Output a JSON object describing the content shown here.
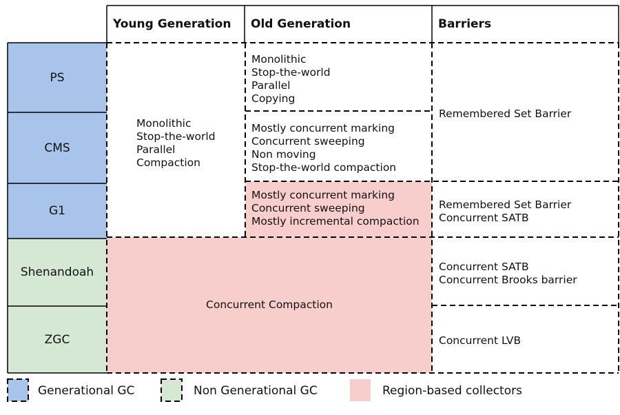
{
  "headers": {
    "young": "Young Generation",
    "old": "Old Generation",
    "barriers": "Barriers"
  },
  "collectors": [
    "PS",
    "CMS",
    "G1",
    "Shenandoah",
    "ZGC"
  ],
  "young_shared": [
    "Monolithic",
    "Stop-the-world",
    "Parallel",
    "Compaction"
  ],
  "old": {
    "ps": [
      "Monolithic",
      "Stop-the-world",
      "Parallel",
      "Copying"
    ],
    "cms": [
      "Mostly concurrent marking",
      "Concurrent sweeping",
      "Non moving",
      "Stop-the-world compaction"
    ],
    "g1": [
      "Mostly concurrent marking",
      "Concurrent sweeping",
      "Mostly incremental compaction"
    ]
  },
  "concurrent_compaction": "Concurrent Compaction",
  "barriers": {
    "ps_cms": [
      "Remembered Set Barrier"
    ],
    "g1": [
      "Remembered Set Barrier",
      "Concurrent SATB"
    ],
    "shenandoah": [
      "Concurrent SATB",
      "Concurrent Brooks barrier"
    ],
    "zgc": [
      "Concurrent LVB"
    ]
  },
  "legend": [
    {
      "label": "Generational GC",
      "color": "#a9c4eb"
    },
    {
      "label": "Non Generational GC",
      "color": "#d5e8d4"
    },
    {
      "label": "Region-based collectors",
      "color": "#f8cecc"
    }
  ],
  "colors": {
    "generational": "#a9c4eb",
    "non_generational": "#d5e8d4",
    "region": "#f8cecc"
  }
}
